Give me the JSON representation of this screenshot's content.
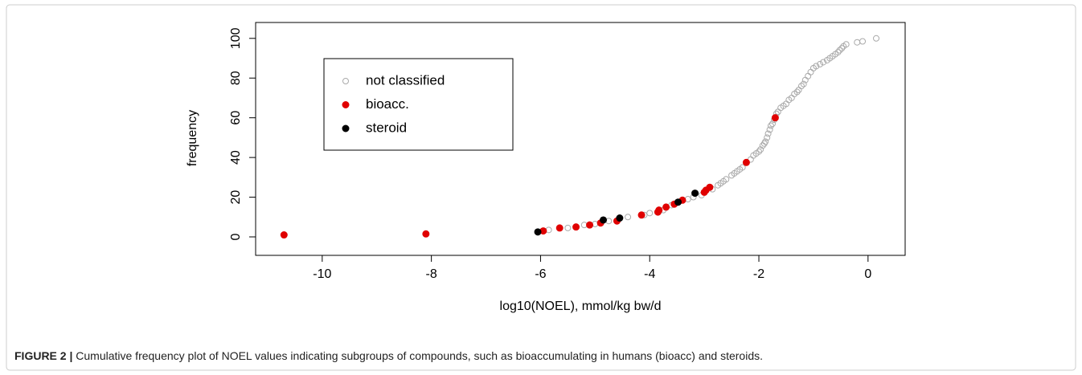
{
  "chart_data": {
    "type": "scatter",
    "xlabel": "log10(NOEL), mmol/kg bw/d",
    "ylabel": "frequency",
    "caption_label": "FIGURE 2 |",
    "caption": "Cumulative frequency plot of NOEL values indicating subgroups of compounds, such as bioaccumulating in humans (bioacc) and steroids.",
    "xlim": [
      -11.22,
      0.68
    ],
    "ylim": [
      -9.3,
      108
    ],
    "xticks": [
      -10,
      -8,
      -6,
      -4,
      -2,
      0
    ],
    "yticks": [
      0,
      20,
      40,
      60,
      80,
      100
    ],
    "legend": "top-left",
    "series": [
      {
        "name": "not classified",
        "color": "#aaaaaa",
        "filled": false,
        "x": [
          -5.85,
          -5.5,
          -5.2,
          -5.0,
          -4.75,
          -4.4,
          -4.1,
          -4.0,
          -3.75,
          -3.6,
          -3.3,
          -3.2,
          -3.05,
          -2.85,
          -2.75,
          -2.7,
          -2.65,
          -2.6,
          -2.5,
          -2.45,
          -2.4,
          -2.35,
          -2.3,
          -2.15,
          -2.1,
          -2.05,
          -2.0,
          -1.97,
          -1.93,
          -1.9,
          -1.88,
          -1.85,
          -1.83,
          -1.8,
          -1.78,
          -1.75,
          -1.72,
          -1.68,
          -1.65,
          -1.6,
          -1.55,
          -1.5,
          -1.45,
          -1.4,
          -1.35,
          -1.3,
          -1.27,
          -1.22,
          -1.18,
          -1.15,
          -1.1,
          -1.05,
          -1.0,
          -0.95,
          -0.88,
          -0.82,
          -0.75,
          -0.7,
          -0.65,
          -0.6,
          -0.55,
          -0.52,
          -0.48,
          -0.45,
          -0.4,
          -0.2,
          -0.1,
          0.15
        ],
        "values": [
          3.5,
          4.5,
          6,
          6.5,
          8,
          10,
          11,
          12,
          13.5,
          16,
          19,
          20,
          21,
          24,
          26,
          27,
          28,
          29,
          31,
          32,
          33,
          34,
          35,
          39,
          41,
          42,
          43,
          44,
          46,
          47,
          48,
          50,
          52,
          54,
          56,
          57,
          59,
          62,
          63,
          65,
          66,
          67,
          69,
          70,
          72,
          73,
          74,
          76,
          77,
          79,
          81,
          83,
          85,
          86,
          87,
          88,
          89,
          90,
          91,
          92,
          93,
          94,
          95,
          96,
          97,
          98,
          98.5,
          100
        ]
      },
      {
        "name": "bioacc.",
        "color": "#e00000",
        "filled": true,
        "x": [
          -10.7,
          -8.1,
          -5.95,
          -5.65,
          -5.35,
          -5.1,
          -4.9,
          -4.6,
          -4.15,
          -3.85,
          -3.83,
          -3.7,
          -3.55,
          -3.4,
          -3.0,
          -2.97,
          -2.9,
          -2.23,
          -1.7
        ],
        "values": [
          1,
          1.5,
          3,
          4.5,
          5,
          6,
          7,
          8,
          11,
          12.5,
          13.5,
          15,
          16.5,
          18.5,
          22.5,
          23.5,
          25,
          37.5,
          60
        ]
      },
      {
        "name": "steroid",
        "color": "#000000",
        "filled": true,
        "x": [
          -6.05,
          -4.85,
          -4.55,
          -3.48,
          -3.17
        ],
        "values": [
          2.5,
          8.5,
          9.5,
          17.5,
          22
        ]
      }
    ]
  }
}
